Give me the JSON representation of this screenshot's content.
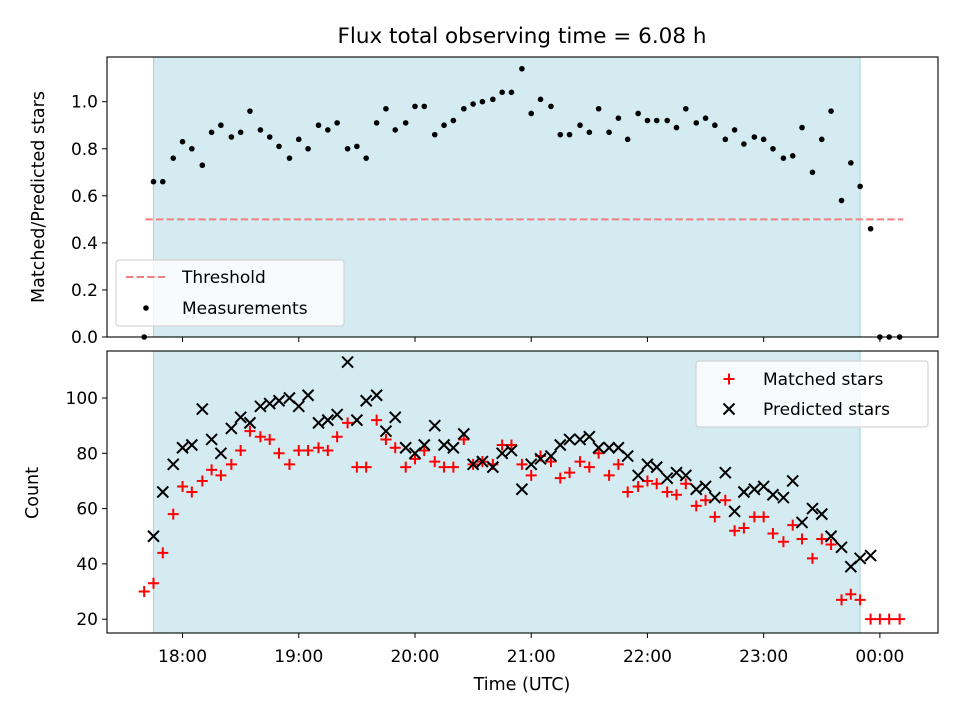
{
  "chart_data": [
    {
      "type": "scatter",
      "title": "Flux total observing time = 6.08 h",
      "xlabel": "",
      "ylabel": "Matched/Predicted stars",
      "xlim": [
        17.35,
        24.5
      ],
      "ylim": [
        0.0,
        1.19
      ],
      "yticks": [
        0.0,
        0.2,
        0.4,
        0.6,
        0.8,
        1.0
      ],
      "ytick_labels": [
        "0.0",
        "0.2",
        "0.4",
        "0.6",
        "0.8",
        "1.0"
      ],
      "xticks": [
        18,
        19,
        20,
        21,
        22,
        23,
        24
      ],
      "shaded_span": [
        17.75,
        23.83
      ],
      "legend_position": "lower-left",
      "threshold": {
        "name": "Threshold",
        "value": 0.5,
        "x_range": [
          17.68,
          24.2
        ],
        "color": "#f08080"
      },
      "series": [
        {
          "name": "Measurements",
          "color": "#000000",
          "x": [
            17.67,
            17.75,
            17.83,
            17.92,
            18.0,
            18.08,
            18.17,
            18.25,
            18.33,
            18.42,
            18.5,
            18.58,
            18.67,
            18.75,
            18.83,
            18.92,
            19.0,
            19.08,
            19.17,
            19.25,
            19.33,
            19.42,
            19.5,
            19.58,
            19.67,
            19.75,
            19.83,
            19.92,
            20.0,
            20.08,
            20.17,
            20.25,
            20.33,
            20.42,
            20.5,
            20.58,
            20.67,
            20.75,
            20.83,
            20.92,
            21.0,
            21.08,
            21.17,
            21.25,
            21.33,
            21.42,
            21.5,
            21.58,
            21.67,
            21.75,
            21.83,
            21.92,
            22.0,
            22.08,
            22.17,
            22.25,
            22.33,
            22.42,
            22.5,
            22.58,
            22.67,
            22.75,
            22.83,
            22.92,
            23.0,
            23.08,
            23.17,
            23.25,
            23.33,
            23.42,
            23.5,
            23.58,
            23.67,
            23.75,
            23.83,
            23.92,
            24.0,
            24.08,
            24.17
          ],
          "y": [
            0.0,
            0.66,
            0.66,
            0.76,
            0.83,
            0.8,
            0.73,
            0.87,
            0.9,
            0.85,
            0.87,
            0.96,
            0.88,
            0.85,
            0.81,
            0.76,
            0.84,
            0.8,
            0.9,
            0.88,
            0.91,
            0.8,
            0.81,
            0.76,
            0.91,
            0.97,
            0.88,
            0.91,
            0.98,
            0.98,
            0.86,
            0.9,
            0.92,
            0.97,
            0.99,
            1.0,
            1.01,
            1.04,
            1.04,
            1.14,
            0.95,
            1.01,
            0.98,
            0.86,
            0.86,
            0.9,
            0.87,
            0.97,
            0.87,
            0.93,
            0.84,
            0.95,
            0.92,
            0.92,
            0.92,
            0.89,
            0.97,
            0.91,
            0.93,
            0.9,
            0.84,
            0.88,
            0.82,
            0.85,
            0.84,
            0.8,
            0.76,
            0.77,
            0.89,
            0.7,
            0.84,
            0.96,
            0.58,
            0.74,
            0.64,
            0.46,
            0.0,
            0.0,
            0.0
          ]
        }
      ]
    },
    {
      "type": "scatter",
      "title": "",
      "xlabel": "Time (UTC)",
      "ylabel": "Count",
      "xlim": [
        17.35,
        24.5
      ],
      "ylim": [
        15,
        117
      ],
      "yticks": [
        20,
        40,
        60,
        80,
        100
      ],
      "ytick_labels": [
        "20",
        "40",
        "60",
        "80",
        "100"
      ],
      "xticks": [
        18,
        19,
        20,
        21,
        22,
        23,
        24
      ],
      "xtick_labels": [
        "18:00",
        "19:00",
        "20:00",
        "21:00",
        "22:00",
        "23:00",
        "00:00"
      ],
      "shaded_span": [
        17.75,
        23.83
      ],
      "legend_position": "top-right",
      "series": [
        {
          "name": "Matched stars",
          "marker": "+",
          "color": "#ff0000",
          "x": [
            17.67,
            17.75,
            17.83,
            17.92,
            18.0,
            18.08,
            18.17,
            18.25,
            18.33,
            18.42,
            18.5,
            18.58,
            18.67,
            18.75,
            18.83,
            18.92,
            19.0,
            19.08,
            19.17,
            19.25,
            19.33,
            19.42,
            19.5,
            19.58,
            19.67,
            19.75,
            19.83,
            19.92,
            20.0,
            20.08,
            20.17,
            20.25,
            20.33,
            20.42,
            20.5,
            20.58,
            20.67,
            20.75,
            20.83,
            20.92,
            21.0,
            21.08,
            21.17,
            21.25,
            21.33,
            21.42,
            21.5,
            21.58,
            21.67,
            21.75,
            21.83,
            21.92,
            22.0,
            22.08,
            22.17,
            22.25,
            22.33,
            22.42,
            22.5,
            22.58,
            22.67,
            22.75,
            22.83,
            22.92,
            23.0,
            23.08,
            23.17,
            23.25,
            23.33,
            23.42,
            23.5,
            23.58,
            23.67,
            23.75,
            23.83,
            23.92,
            24.0,
            24.08,
            24.17
          ],
          "y": [
            30,
            33,
            44,
            58,
            68,
            66,
            70,
            74,
            72,
            76,
            81,
            88,
            86,
            85,
            80,
            76,
            81,
            81,
            82,
            81,
            86,
            91,
            75,
            75,
            92,
            85,
            82,
            75,
            78,
            81,
            77,
            75,
            75,
            85,
            76,
            77,
            76,
            83,
            83,
            76,
            72,
            79,
            77,
            71,
            73,
            77,
            75,
            80,
            72,
            76,
            66,
            68,
            70,
            69,
            66,
            65,
            69,
            61,
            63,
            57,
            63,
            52,
            53,
            57,
            57,
            51,
            48,
            54,
            49,
            42,
            49,
            47,
            27,
            29,
            27,
            20,
            20,
            20,
            20
          ]
        },
        {
          "name": "Predicted stars",
          "marker": "x",
          "color": "#000000",
          "x": [
            17.75,
            17.83,
            17.92,
            18.0,
            18.08,
            18.17,
            18.25,
            18.33,
            18.42,
            18.5,
            18.58,
            18.67,
            18.75,
            18.83,
            18.92,
            19.0,
            19.08,
            19.17,
            19.25,
            19.33,
            19.42,
            19.5,
            19.58,
            19.67,
            19.75,
            19.83,
            19.92,
            20.0,
            20.08,
            20.17,
            20.25,
            20.33,
            20.42,
            20.5,
            20.58,
            20.67,
            20.75,
            20.83,
            20.92,
            21.0,
            21.08,
            21.17,
            21.25,
            21.33,
            21.42,
            21.5,
            21.58,
            21.67,
            21.75,
            21.83,
            21.92,
            22.0,
            22.08,
            22.17,
            22.25,
            22.33,
            22.42,
            22.5,
            22.58,
            22.67,
            22.75,
            22.83,
            22.92,
            23.0,
            23.08,
            23.17,
            23.25,
            23.33,
            23.42,
            23.5,
            23.58,
            23.67,
            23.75,
            23.83,
            23.92
          ],
          "y": [
            50,
            66,
            76,
            82,
            83,
            96,
            85,
            80,
            89,
            93,
            91,
            97,
            98,
            99,
            100,
            97,
            101,
            91,
            92,
            94,
            113,
            92,
            99,
            101,
            88,
            93,
            82,
            80,
            83,
            90,
            83,
            82,
            87,
            76,
            77,
            75,
            80,
            81,
            67,
            76,
            78,
            79,
            83,
            85,
            85,
            86,
            82,
            82,
            82,
            79,
            72,
            76,
            75,
            71,
            73,
            72,
            67,
            68,
            64,
            73,
            59,
            66,
            67,
            68,
            65,
            64,
            70,
            55,
            60,
            58,
            50,
            46,
            39,
            42,
            43
          ]
        }
      ]
    }
  ]
}
